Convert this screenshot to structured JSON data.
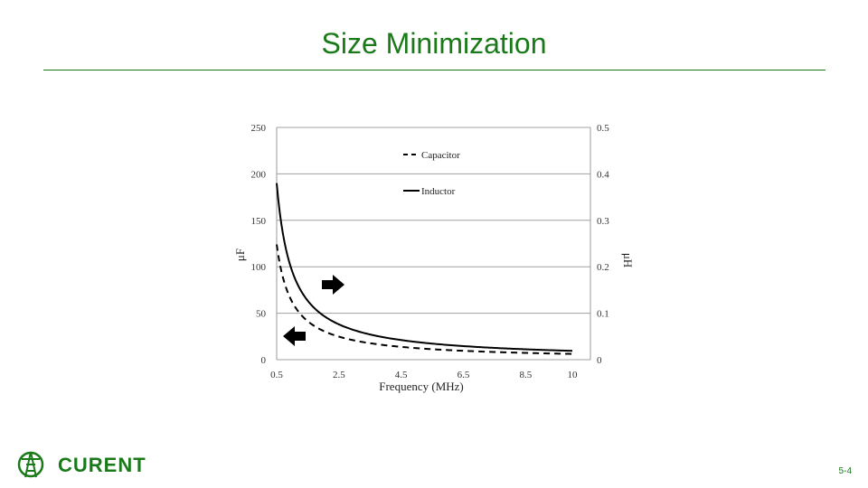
{
  "slide": {
    "title": "Size Minimization",
    "page_number": "5-4",
    "logo_text": "CURENT"
  },
  "colors": {
    "accent": "#1a7a1a",
    "series_line": "#000000",
    "gridline": "#a0a0a0"
  },
  "chart_data": {
    "type": "line",
    "xlabel": "Frequency (MHz)",
    "ylabel_left": "μF",
    "ylabel_right": "μH",
    "xlim": [
      0.5,
      10
    ],
    "ylim_left": [
      0,
      250
    ],
    "ylim_right": [
      0,
      0.5
    ],
    "x_ticks": [
      "0.5",
      "2.5",
      "4.5",
      "6.5",
      "8.5",
      "10"
    ],
    "y_left_ticks": [
      "0",
      "50",
      "100",
      "150",
      "200",
      "250"
    ],
    "y_right_ticks": [
      "0",
      "0.1",
      "0.2",
      "0.3",
      "0.4",
      "0.5"
    ],
    "grid": "horizontal",
    "legend_position": "top-center",
    "series": [
      {
        "name": "Capacitor",
        "axis": "left",
        "style": "dashed",
        "x": [
          0.5,
          0.75,
          1,
          1.5,
          2,
          2.5,
          3,
          4,
          5,
          6,
          7,
          8,
          9,
          10
        ],
        "y": [
          124,
          82,
          62,
          41,
          31,
          25,
          21,
          15.5,
          12.4,
          10.3,
          8.9,
          7.8,
          6.9,
          6.2
        ]
      },
      {
        "name": "Inductor",
        "axis": "right",
        "style": "solid",
        "x": [
          0.5,
          0.75,
          1,
          1.5,
          2,
          2.5,
          3,
          4,
          5,
          6,
          7,
          8,
          9,
          10
        ],
        "y": [
          0.38,
          0.253,
          0.19,
          0.127,
          0.095,
          0.076,
          0.063,
          0.0475,
          0.038,
          0.0317,
          0.0271,
          0.0238,
          0.0211,
          0.019
        ]
      }
    ],
    "annotations": [
      {
        "type": "arrow",
        "direction": "right",
        "name": "inductor-arrow"
      },
      {
        "type": "arrow",
        "direction": "left",
        "name": "capacitor-arrow"
      }
    ]
  }
}
